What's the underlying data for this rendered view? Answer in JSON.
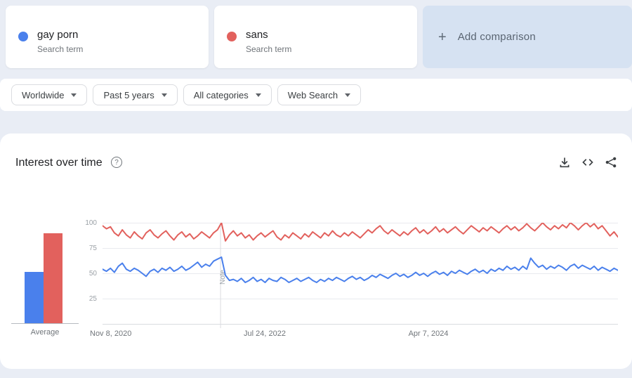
{
  "comparison": {
    "terms": [
      {
        "label": "gay porn",
        "sublabel": "Search term",
        "color": "#4a80ec"
      },
      {
        "label": "sans",
        "sublabel": "Search term",
        "color": "#e2615d"
      }
    ],
    "add_label": "Add comparison",
    "plus_glyph": "+"
  },
  "filters": [
    {
      "label": "Worldwide"
    },
    {
      "label": "Past 5 years"
    },
    {
      "label": "All categories"
    },
    {
      "label": "Web Search"
    }
  ],
  "interest_section": {
    "title": "Interest over time",
    "help_glyph": "?",
    "toolbar_icons": [
      "download-icon",
      "embed-icon",
      "share-icon"
    ]
  },
  "chart_data": {
    "type": "line",
    "title": "Interest over time",
    "ylim": [
      0,
      100
    ],
    "yticks": [
      25,
      50,
      75,
      100
    ],
    "xtick_labels": [
      "Nov 8, 2020",
      "Jul 24, 2022",
      "Apr 7, 2024"
    ],
    "grid": true,
    "note_marker": {
      "x_fraction": 0.229,
      "label": "Note"
    },
    "average_bars": {
      "label": "Average",
      "values": [
        {
          "name": "gay porn",
          "value": 51,
          "color": "#4a80ec"
        },
        {
          "name": "sans",
          "value": 89,
          "color": "#e2615d"
        }
      ]
    },
    "series": [
      {
        "name": "gay porn",
        "color": "#4a80ec",
        "values": [
          54,
          52,
          55,
          51,
          57,
          60,
          54,
          52,
          55,
          53,
          50,
          47,
          52,
          54,
          51,
          55,
          53,
          56,
          52,
          54,
          57,
          53,
          55,
          58,
          61,
          56,
          59,
          57,
          62,
          64,
          66,
          48,
          43,
          44,
          42,
          45,
          41,
          43,
          46,
          42,
          44,
          41,
          45,
          43,
          42,
          46,
          44,
          41,
          43,
          45,
          42,
          44,
          46,
          43,
          41,
          44,
          42,
          45,
          43,
          46,
          44,
          42,
          45,
          47,
          44,
          46,
          43,
          45,
          48,
          46,
          49,
          47,
          45,
          48,
          50,
          47,
          49,
          46,
          48,
          51,
          48,
          50,
          47,
          50,
          52,
          49,
          51,
          48,
          52,
          50,
          53,
          51,
          49,
          52,
          54,
          51,
          53,
          50,
          54,
          52,
          55,
          53,
          57,
          54,
          56,
          53,
          57,
          54,
          65,
          60,
          56,
          58,
          54,
          57,
          55,
          58,
          56,
          53,
          57,
          59,
          55,
          58,
          56,
          54,
          57,
          53,
          56,
          54,
          52,
          55,
          53
        ]
      },
      {
        "name": "sans",
        "color": "#e2615d",
        "values": [
          97,
          94,
          96,
          90,
          87,
          93,
          88,
          85,
          91,
          87,
          84,
          90,
          93,
          88,
          85,
          89,
          92,
          87,
          83,
          88,
          91,
          86,
          89,
          84,
          87,
          91,
          88,
          85,
          90,
          93,
          100,
          82,
          88,
          92,
          87,
          90,
          85,
          88,
          83,
          87,
          90,
          86,
          89,
          92,
          86,
          83,
          88,
          85,
          90,
          87,
          84,
          89,
          86,
          91,
          88,
          85,
          90,
          87,
          92,
          88,
          86,
          90,
          87,
          91,
          88,
          85,
          89,
          93,
          90,
          94,
          97,
          92,
          89,
          93,
          90,
          87,
          91,
          88,
          92,
          95,
          90,
          93,
          89,
          92,
          96,
          91,
          94,
          90,
          93,
          96,
          92,
          89,
          93,
          97,
          94,
          91,
          95,
          92,
          96,
          93,
          90,
          94,
          97,
          93,
          96,
          92,
          95,
          99,
          95,
          92,
          96,
          100,
          96,
          93,
          97,
          94,
          98,
          95,
          100,
          97,
          93,
          97,
          100,
          96,
          99,
          94,
          97,
          92,
          87,
          91,
          86
        ]
      }
    ]
  }
}
